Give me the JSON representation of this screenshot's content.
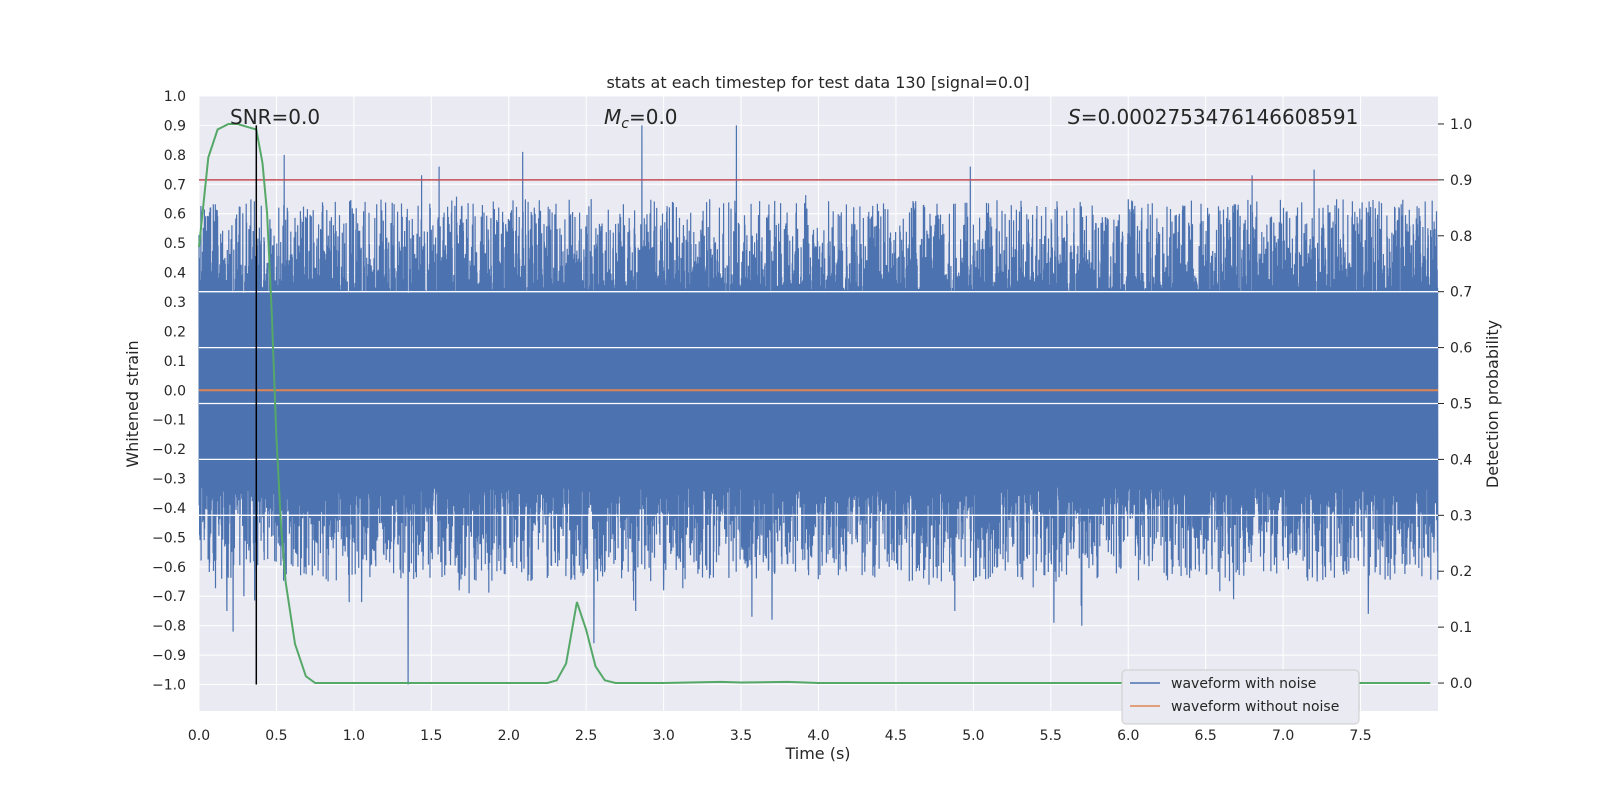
{
  "chart_data": {
    "type": "line",
    "title": "stats at each timestep for test data 130 [signal=0.0]",
    "xlabel": "Time (s)",
    "ylabel": "Whitened strain",
    "y2label": "Detection probability",
    "xlim": [
      0.0,
      8.0
    ],
    "ylim": [
      -1.09,
      1.0
    ],
    "y2lim": [
      -0.05,
      1.05
    ],
    "xticks": [
      0.0,
      0.5,
      1.0,
      1.5,
      2.0,
      2.5,
      3.0,
      3.5,
      4.0,
      4.5,
      5.0,
      5.5,
      6.0,
      6.5,
      7.0,
      7.5
    ],
    "xtick_labels": [
      "0.0",
      "0.5",
      "1.0",
      "1.5",
      "2.0",
      "2.5",
      "3.0",
      "3.5",
      "4.0",
      "4.5",
      "5.0",
      "5.5",
      "6.0",
      "6.5",
      "7.0",
      "7.5"
    ],
    "yticks": [
      1.0,
      0.9,
      0.8,
      0.7,
      0.6,
      0.5,
      0.4,
      0.3,
      0.2,
      0.1,
      0.0,
      -0.1,
      -0.2,
      -0.3,
      -0.4,
      -0.5,
      -0.6,
      -0.7,
      -0.8,
      -0.9,
      -1.0
    ],
    "ytick_labels": [
      "1.0",
      "0.9",
      "0.8",
      "0.7",
      "0.6",
      "0.5",
      "0.4",
      "0.3",
      "0.2",
      "0.1",
      "0.0",
      "−0.1",
      "−0.2",
      "−0.3",
      "−0.4",
      "−0.5",
      "−0.6",
      "−0.7",
      "−0.8",
      "−0.9",
      "−1.0"
    ],
    "y2ticks": [
      1.0,
      0.9,
      0.8,
      0.7,
      0.6,
      0.5,
      0.4,
      0.3,
      0.2,
      0.1,
      0.0
    ],
    "y2tick_labels": [
      "1.0",
      "0.9",
      "0.8",
      "0.7",
      "0.6",
      "0.5",
      "0.4",
      "0.3",
      "0.2",
      "0.1",
      "0.0"
    ],
    "annotations": {
      "snr": "SNR=0.0",
      "mc_symbol": "M",
      "mc_sub": "c",
      "mc_value": "=0.0",
      "s_symbol": "S",
      "s_value": "=0.0002753476146608591"
    },
    "noise": {
      "name": "waveform with noise",
      "color": "#4c72b0",
      "sample_rate_hz": 800,
      "core_band": [
        -0.33,
        0.33
      ],
      "seed": 130,
      "spikes": [
        {
          "x": 0.18,
          "y": -0.75
        },
        {
          "x": 0.22,
          "y": -0.82
        },
        {
          "x": 0.29,
          "y": -0.7
        },
        {
          "x": 0.55,
          "y": 0.8
        },
        {
          "x": 0.42,
          "y": 0.52
        },
        {
          "x": 0.97,
          "y": -0.72
        },
        {
          "x": 1.05,
          "y": -0.72
        },
        {
          "x": 1.35,
          "y": -1.0
        },
        {
          "x": 1.55,
          "y": 0.76
        },
        {
          "x": 1.68,
          "y": -0.68
        },
        {
          "x": 2.09,
          "y": 0.81
        },
        {
          "x": 2.55,
          "y": -0.86
        },
        {
          "x": 2.82,
          "y": -0.75
        },
        {
          "x": 2.86,
          "y": 0.9
        },
        {
          "x": 3.0,
          "y": -0.68
        },
        {
          "x": 3.47,
          "y": 0.9
        },
        {
          "x": 3.57,
          "y": -0.77
        },
        {
          "x": 3.7,
          "y": -0.78
        },
        {
          "x": 4.72,
          "y": 0.6
        },
        {
          "x": 4.98,
          "y": 0.76
        },
        {
          "x": 4.88,
          "y": -0.75
        },
        {
          "x": 5.52,
          "y": -0.79
        },
        {
          "x": 5.7,
          "y": -0.8
        },
        {
          "x": 6.68,
          "y": -0.71
        },
        {
          "x": 6.8,
          "y": 0.73
        },
        {
          "x": 7.2,
          "y": 0.75
        },
        {
          "x": 7.55,
          "y": -0.76
        },
        {
          "x": 7.22,
          "y": -0.65
        },
        {
          "x": 2.33,
          "y": 0.55
        },
        {
          "x": 6.33,
          "y": 0.6
        }
      ]
    },
    "clean": {
      "name": "waveform without noise",
      "color": "#dd8452",
      "y": 0.0
    },
    "probability": {
      "color": "#55a868",
      "x": [
        0.0,
        0.06,
        0.12,
        0.19,
        0.25,
        0.31,
        0.37,
        0.41,
        0.44,
        0.47,
        0.5,
        0.53,
        0.56,
        0.62,
        0.69,
        0.75,
        1.0,
        2.0,
        2.25,
        2.31,
        2.37,
        2.44,
        2.5,
        2.56,
        2.62,
        2.69,
        3.0,
        3.37,
        3.5,
        3.8,
        4.0,
        5.0,
        6.0,
        7.0,
        7.95
      ],
      "y": [
        0.78,
        0.94,
        0.99,
        1.0,
        1.0,
        0.995,
        0.99,
        0.93,
        0.84,
        0.66,
        0.44,
        0.28,
        0.18,
        0.07,
        0.012,
        0.0,
        0.0,
        0.0,
        0.0,
        0.005,
        0.035,
        0.145,
        0.095,
        0.03,
        0.005,
        0.0,
        0.0,
        0.002,
        0.001,
        0.002,
        0.0,
        0.0,
        0.0,
        0.0,
        0.0
      ]
    },
    "threshold": {
      "color": "#c44e52",
      "y2": 0.9
    },
    "marker_line": {
      "color": "#000000",
      "x": 0.37,
      "y_from": -1.0,
      "y_to": 0.9
    },
    "legend": {
      "position": "lower-right",
      "entries": [
        "waveform with noise",
        "waveform without noise"
      ]
    }
  }
}
